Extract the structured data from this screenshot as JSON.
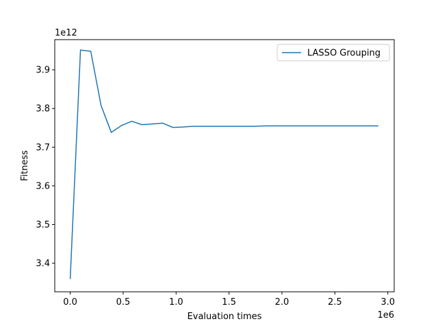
{
  "chart_data": {
    "type": "line",
    "title": "",
    "xlabel": "Evaluation times",
    "ylabel": "Fitness",
    "x_offset_label": "1e6",
    "y_offset_label": "1e12",
    "xlim": [
      -0.146,
      3.06
    ],
    "ylim": [
      3.326,
      3.978
    ],
    "x_ticks": [
      0.0,
      0.5,
      1.0,
      1.5,
      2.0,
      2.5,
      3.0
    ],
    "x_tick_labels": [
      "0.0",
      "0.5",
      "1.0",
      "1.5",
      "2.0",
      "2.5",
      "3.0"
    ],
    "y_ticks": [
      3.4,
      3.5,
      3.6,
      3.7,
      3.8,
      3.9
    ],
    "y_tick_labels": [
      "3.4",
      "3.5",
      "3.6",
      "3.7",
      "3.8",
      "3.9"
    ],
    "grid": false,
    "legend_position": "top-right",
    "series": [
      {
        "name": "LASSO Grouping",
        "color": "#1f77b4",
        "x": [
          0.0,
          0.097,
          0.194,
          0.291,
          0.388,
          0.485,
          0.582,
          0.679,
          0.776,
          0.873,
          0.97,
          1.067,
          1.164,
          1.261,
          1.358,
          1.455,
          1.552,
          1.649,
          1.746,
          1.843,
          1.94,
          2.037,
          2.134,
          2.231,
          2.328,
          2.425,
          2.522,
          2.619,
          2.716,
          2.813,
          2.91
        ],
        "y": [
          3.359,
          3.951,
          3.948,
          3.808,
          3.738,
          3.756,
          3.767,
          3.758,
          3.76,
          3.762,
          3.751,
          3.752,
          3.754,
          3.754,
          3.754,
          3.754,
          3.754,
          3.754,
          3.754,
          3.755,
          3.755,
          3.755,
          3.755,
          3.755,
          3.755,
          3.755,
          3.755,
          3.755,
          3.755,
          3.755,
          3.755
        ]
      }
    ]
  }
}
